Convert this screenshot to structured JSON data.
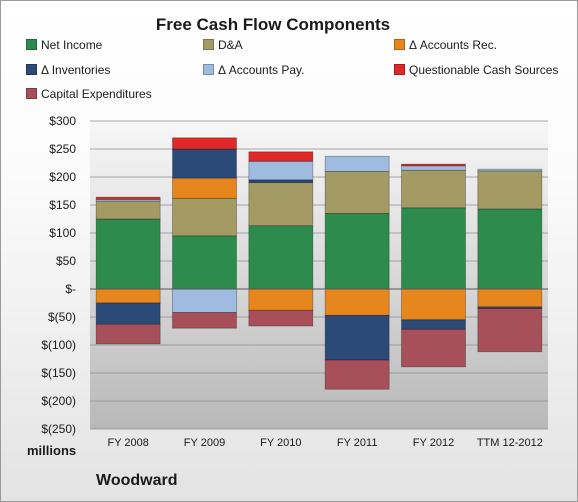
{
  "chart_data": {
    "type": "bar",
    "stacked": true,
    "title": "Free Cash Flow Components",
    "unit_label": "millions",
    "company": "Woodward",
    "categories": [
      "FY 2008",
      "FY 2009",
      "FY 2010",
      "FY 2011",
      "FY 2012",
      "TTM 12-2012"
    ],
    "y_ticks": [
      "$300",
      "$250",
      "$200",
      "$150",
      "$100",
      "$50",
      "$-",
      "$(50)",
      "$(100)",
      "$(150)",
      "$(200)",
      "$(250)"
    ],
    "ylim": [
      -250,
      300
    ],
    "grid": true,
    "legend_position": "top",
    "series": [
      {
        "name": "Net Income",
        "color": "#2e8b4e",
        "values": [
          125,
          95,
          113,
          135,
          145,
          143
        ]
      },
      {
        "name": "D&A",
        "color": "#a39a64",
        "values": [
          32,
          67,
          77,
          75,
          67,
          68
        ]
      },
      {
        "name": "Δ Accounts Rec.",
        "color": "#e8861e",
        "values": [
          -25,
          36,
          -38,
          -47,
          -55,
          -32
        ]
      },
      {
        "name": "Δ Inventories",
        "color": "#2c4a78",
        "values": [
          -38,
          52,
          5,
          -80,
          -17,
          -3
        ]
      },
      {
        "name": "Δ Accounts Pay.",
        "color": "#9fbce0",
        "values": [
          3,
          -42,
          33,
          27,
          8,
          3
        ]
      },
      {
        "name": "Questionable Cash Sources",
        "color": "#e02828",
        "values": [
          4,
          20,
          17,
          0,
          3,
          0
        ]
      },
      {
        "name": "Capital Expenditures",
        "color": "#a8505a",
        "values": [
          -35,
          -28,
          -28,
          -52,
          -67,
          -77
        ]
      }
    ]
  }
}
